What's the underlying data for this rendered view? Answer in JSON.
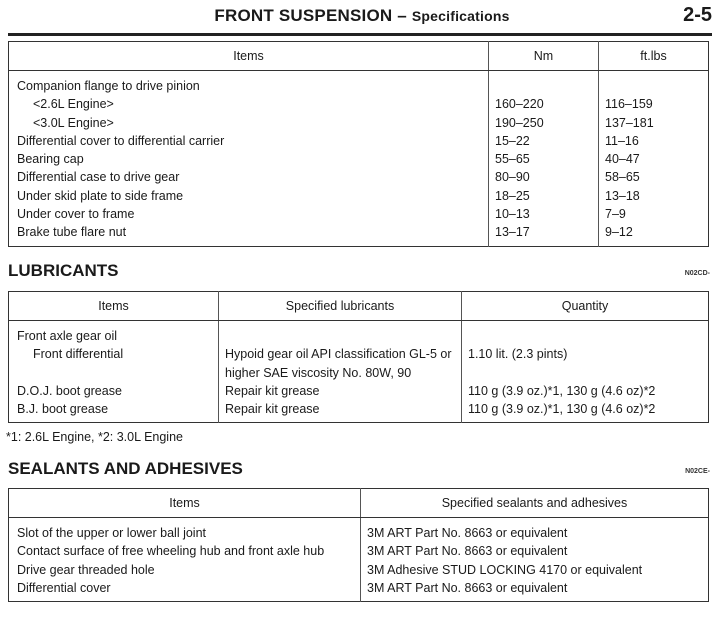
{
  "header": {
    "title_main": "FRONT SUSPENSION",
    "title_sep": " – ",
    "title_sub": "Specifications",
    "page_number": "2-5"
  },
  "torque": {
    "headers": [
      "Items",
      "Nm",
      "ft.lbs"
    ],
    "rows": [
      {
        "item": "Companion flange to drive pinion",
        "nm": "",
        "ftlbs": "",
        "indent": false
      },
      {
        "item": "<2.6L Engine>",
        "nm": "160–220",
        "ftlbs": "116–159",
        "indent": true
      },
      {
        "item": "<3.0L Engine>",
        "nm": "190–250",
        "ftlbs": "137–181",
        "indent": true
      },
      {
        "item": "Differential cover to differential carrier",
        "nm": "15–22",
        "ftlbs": "11–16",
        "indent": false
      },
      {
        "item": "Bearing cap",
        "nm": "55–65",
        "ftlbs": "40–47",
        "indent": false
      },
      {
        "item": "Differential case to drive gear",
        "nm": "80–90",
        "ftlbs": "58–65",
        "indent": false
      },
      {
        "item": "Under skid plate to side frame",
        "nm": "18–25",
        "ftlbs": "13–18",
        "indent": false
      },
      {
        "item": "Under cover to frame",
        "nm": "10–13",
        "ftlbs": "7–9",
        "indent": false
      },
      {
        "item": "Brake tube flare nut",
        "nm": "13–17",
        "ftlbs": "9–12",
        "indent": false
      }
    ]
  },
  "lubricants": {
    "title": "LUBRICANTS",
    "code": "N02CD-",
    "headers": [
      "Items",
      "Specified lubricants",
      "Quantity"
    ],
    "rows": [
      {
        "item": "Front axle gear oil",
        "lubricant": "",
        "quantity": ""
      },
      {
        "item": "Front differential",
        "lubricant": "Hypoid gear oil API classification GL-5 or higher SAE viscosity No. 80W, 90",
        "quantity": "1.10 lit. (2.3 pints)"
      },
      {
        "item": "D.O.J. boot grease",
        "lubricant": "Repair kit grease",
        "quantity": "110 g (3.9 oz.)*1, 130 g (4.6 oz)*2"
      },
      {
        "item": "B.J. boot grease",
        "lubricant": "Repair kit grease",
        "quantity": "110 g (3.9 oz.)*1, 130 g (4.6 oz)*2"
      }
    ],
    "footnote": "*1: 2.6L Engine, *2: 3.0L Engine"
  },
  "sealants": {
    "title": "SEALANTS AND ADHESIVES",
    "code": "N02CE-",
    "headers": [
      "Items",
      "Specified sealants and adhesives"
    ],
    "rows": [
      {
        "item": "Slot of the upper or lower ball joint",
        "sealant": "3M ART Part No. 8663 or equivalent"
      },
      {
        "item": "Contact surface of free wheeling hub and front axle hub",
        "sealant": "3M ART Part No. 8663 or equivalent"
      },
      {
        "item": "Drive gear threaded hole",
        "sealant": "3M Adhesive STUD LOCKING 4170 or equivalent"
      },
      {
        "item": "Differential cover",
        "sealant": "3M ART Part No. 8663 or equivalent"
      }
    ]
  }
}
